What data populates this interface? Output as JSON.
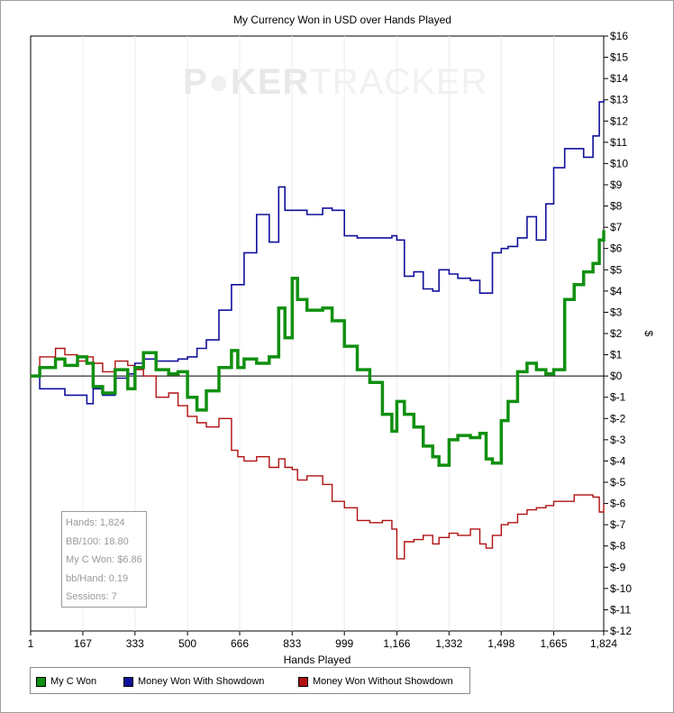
{
  "chart_data": {
    "type": "line",
    "title": "My Currency Won in USD over Hands Played",
    "xlabel": "Hands Played",
    "ylabel": "$",
    "xlim": [
      1,
      1824
    ],
    "ylim": [
      -12,
      16
    ],
    "x_ticks": [
      1,
      167,
      333,
      500,
      666,
      833,
      999,
      1166,
      1332,
      1498,
      1665,
      1824
    ],
    "x_tick_labels": [
      "1",
      "167",
      "333",
      "500",
      "666",
      "833",
      "999",
      "1,166",
      "1,332",
      "1,498",
      "1,665",
      "1,824"
    ],
    "y_ticks": [
      16,
      15,
      14,
      13,
      12,
      11,
      10,
      9,
      8,
      7,
      6,
      5,
      4,
      3,
      2,
      1,
      0,
      -1,
      -2,
      -3,
      -4,
      -5,
      -6,
      -7,
      -8,
      -9,
      -10,
      -11,
      -12
    ],
    "y_tick_labels": [
      "$16",
      "$15",
      "$14",
      "$13",
      "$12",
      "$11",
      "$10",
      "$9",
      "$8",
      "$7",
      "$6",
      "$5",
      "$4",
      "$3",
      "$2",
      "$1",
      "$0",
      "$-1",
      "$-2",
      "$-3",
      "$-4",
      "$-5",
      "$-6",
      "$-7",
      "$-8",
      "$-9",
      "$-10",
      "$-11",
      "$-12"
    ],
    "series": [
      {
        "name": "My C Won",
        "color": "#109010",
        "x": [
          1,
          30,
          80,
          110,
          150,
          180,
          200,
          230,
          270,
          310,
          333,
          360,
          400,
          440,
          470,
          500,
          530,
          560,
          600,
          640,
          660,
          680,
          720,
          760,
          790,
          810,
          833,
          850,
          880,
          930,
          960,
          999,
          1040,
          1080,
          1120,
          1150,
          1166,
          1190,
          1220,
          1250,
          1280,
          1300,
          1332,
          1360,
          1400,
          1430,
          1450,
          1470,
          1498,
          1520,
          1550,
          1580,
          1610,
          1640,
          1665,
          1700,
          1730,
          1760,
          1790,
          1810,
          1824
        ],
        "values": [
          0,
          0.4,
          0.8,
          0.5,
          0.9,
          0.6,
          -0.5,
          -0.8,
          0.3,
          -0.6,
          0.4,
          1.1,
          0.3,
          0.1,
          0.2,
          -1.0,
          -1.6,
          -0.7,
          0.4,
          1.2,
          0.4,
          0.8,
          0.6,
          0.9,
          3.2,
          1.8,
          4.6,
          3.6,
          3.1,
          3.2,
          2.6,
          1.4,
          0.3,
          -0.3,
          -1.8,
          -2.6,
          -1.2,
          -1.8,
          -2.4,
          -3.3,
          -3.8,
          -4.2,
          -3.0,
          -2.8,
          -2.9,
          -2.7,
          -3.9,
          -4.1,
          -2.1,
          -1.2,
          0.2,
          0.6,
          0.3,
          0.1,
          0.3,
          3.6,
          4.3,
          4.9,
          5.3,
          6.4,
          6.86
        ]
      },
      {
        "name": "Money Won With Showdown",
        "color": "#10109c",
        "x": [
          1,
          30,
          80,
          110,
          150,
          180,
          200,
          230,
          270,
          310,
          333,
          360,
          400,
          440,
          470,
          500,
          530,
          560,
          600,
          640,
          660,
          680,
          720,
          760,
          790,
          810,
          833,
          850,
          880,
          930,
          960,
          999,
          1040,
          1080,
          1120,
          1150,
          1166,
          1190,
          1220,
          1250,
          1280,
          1300,
          1332,
          1360,
          1400,
          1430,
          1450,
          1470,
          1498,
          1520,
          1550,
          1580,
          1610,
          1640,
          1665,
          1700,
          1730,
          1760,
          1790,
          1810,
          1824
        ],
        "values": [
          0,
          -0.6,
          -0.6,
          -0.9,
          -0.9,
          -1.3,
          -0.6,
          -0.9,
          -0.1,
          0.1,
          0.6,
          0.8,
          0.7,
          0.7,
          0.8,
          0.9,
          1.3,
          1.7,
          3.1,
          4.3,
          4.3,
          5.8,
          7.6,
          6.3,
          8.9,
          7.8,
          7.8,
          7.8,
          7.6,
          7.9,
          7.8,
          6.6,
          6.5,
          6.5,
          6.5,
          6.6,
          6.4,
          4.7,
          4.9,
          4.1,
          4.0,
          5.0,
          4.8,
          4.6,
          4.5,
          3.9,
          3.9,
          5.8,
          6.0,
          6.1,
          6.5,
          7.5,
          6.4,
          8.1,
          9.8,
          10.7,
          10.7,
          10.3,
          11.3,
          12.9,
          13.0
        ]
      },
      {
        "name": "Money Won Without Showdown",
        "color": "#b01010",
        "x": [
          1,
          30,
          80,
          110,
          150,
          180,
          200,
          230,
          270,
          310,
          333,
          360,
          400,
          440,
          470,
          500,
          530,
          560,
          600,
          640,
          660,
          680,
          720,
          760,
          790,
          810,
          833,
          850,
          880,
          930,
          960,
          999,
          1040,
          1080,
          1120,
          1150,
          1166,
          1190,
          1220,
          1250,
          1280,
          1300,
          1332,
          1360,
          1400,
          1430,
          1450,
          1470,
          1498,
          1520,
          1550,
          1580,
          1610,
          1640,
          1665,
          1700,
          1730,
          1760,
          1790,
          1810,
          1824
        ],
        "values": [
          0,
          0.9,
          1.3,
          1.0,
          0.7,
          0.9,
          0.6,
          0.2,
          0.7,
          0.5,
          0.3,
          0.0,
          -1.0,
          -0.8,
          -1.4,
          -1.9,
          -2.2,
          -2.4,
          -2.0,
          -3.5,
          -3.8,
          -4.0,
          -3.8,
          -4.3,
          -3.9,
          -4.3,
          -4.4,
          -4.9,
          -4.7,
          -5.1,
          -5.9,
          -6.2,
          -6.8,
          -6.9,
          -6.8,
          -7.2,
          -8.6,
          -7.8,
          -7.7,
          -7.5,
          -7.9,
          -7.6,
          -7.4,
          -7.5,
          -7.2,
          -7.9,
          -8.1,
          -7.5,
          -7.0,
          -6.9,
          -6.5,
          -6.3,
          -6.2,
          -6.1,
          -5.9,
          -5.9,
          -5.6,
          -5.6,
          -5.7,
          -6.4,
          -6.0
        ]
      }
    ],
    "watermark": {
      "part1": "P",
      "part2": "KER",
      "part3": "TRACKER"
    }
  },
  "stats": {
    "hands": "Hands: 1,824",
    "bb100": "BB/100: 18.80",
    "won": "My C Won: $6.86",
    "bbhand": "bb/Hand: 0.19",
    "sessions": "Sessions: 7"
  },
  "legend": [
    {
      "label": "My C Won",
      "color": "#109010"
    },
    {
      "label": "Money Won With Showdown",
      "color": "#10109c"
    },
    {
      "label": "Money Won Without Showdown",
      "color": "#b01010"
    }
  ]
}
